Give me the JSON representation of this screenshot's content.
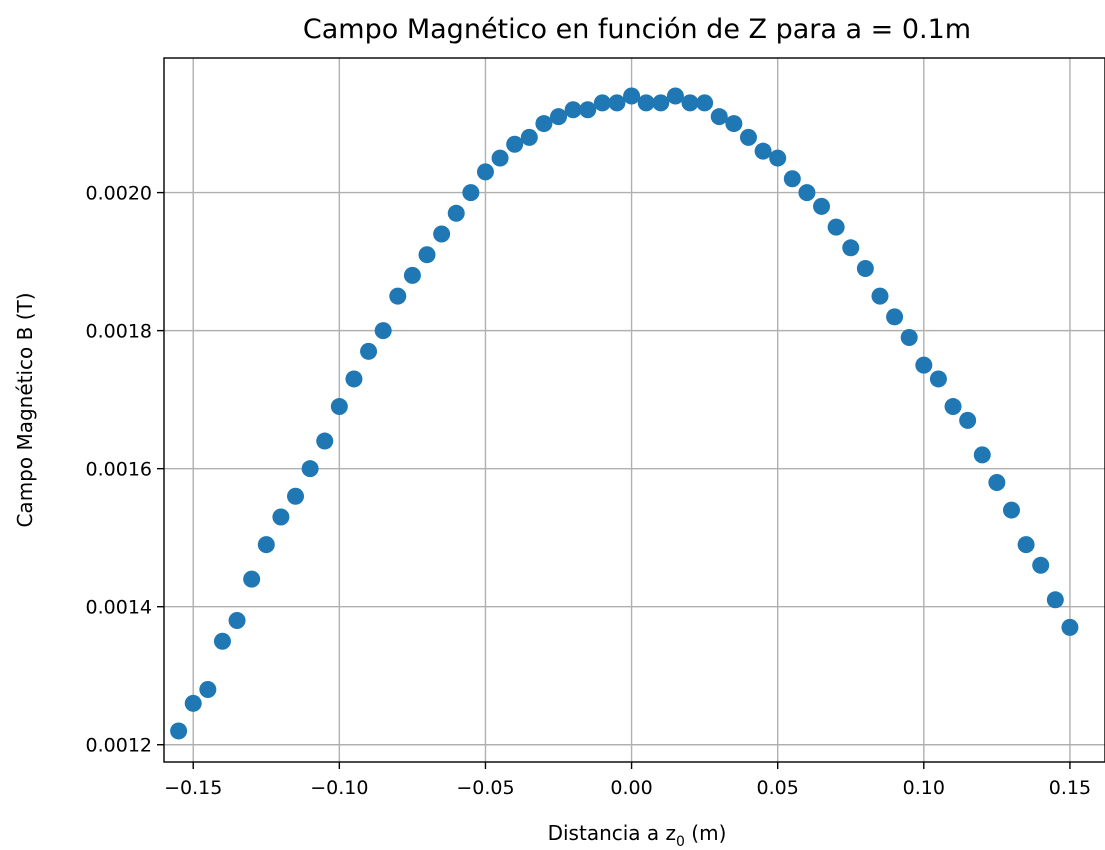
{
  "chart_data": {
    "type": "scatter",
    "title": "Campo Magnético en función de Z para a = 0.1m",
    "xlabel_main": "Distancia a z",
    "xlabel_sub": "0",
    "xlabel_unit": " (m)",
    "ylabel": "Campo Magnético B (T)",
    "xlim": [
      -0.16,
      0.162
    ],
    "ylim": [
      0.001175,
      0.002195
    ],
    "xticks": [
      -0.15,
      -0.1,
      -0.05,
      0.0,
      0.05,
      0.1,
      0.15
    ],
    "xtick_labels": [
      "−0.15",
      "−0.10",
      "−0.05",
      "0.00",
      "0.05",
      "0.10",
      "0.15"
    ],
    "yticks": [
      0.0012,
      0.0014,
      0.0016,
      0.0018,
      0.002
    ],
    "ytick_labels": [
      "0.0012",
      "0.0014",
      "0.0016",
      "0.0018",
      "0.0020"
    ],
    "grid": true,
    "marker_color": "#1f77b4",
    "x": [
      -0.155,
      -0.15,
      -0.145,
      -0.14,
      -0.135,
      -0.13,
      -0.125,
      -0.12,
      -0.115,
      -0.11,
      -0.105,
      -0.1,
      -0.095,
      -0.09,
      -0.085,
      -0.08,
      -0.075,
      -0.07,
      -0.065,
      -0.06,
      -0.055,
      -0.05,
      -0.045,
      -0.04,
      -0.035,
      -0.03,
      -0.025,
      -0.02,
      -0.015,
      -0.01,
      -0.005,
      0.0,
      0.005,
      0.01,
      0.015,
      0.02,
      0.025,
      0.03,
      0.035,
      0.04,
      0.045,
      0.05,
      0.055,
      0.06,
      0.065,
      0.07,
      0.075,
      0.08,
      0.085,
      0.09,
      0.095,
      0.1,
      0.105,
      0.11,
      0.115,
      0.12,
      0.125,
      0.13,
      0.135,
      0.14,
      0.145,
      0.15
    ],
    "y": [
      0.00122,
      0.00126,
      0.00128,
      0.00135,
      0.00138,
      0.00144,
      0.00149,
      0.00153,
      0.00156,
      0.0016,
      0.00164,
      0.00169,
      0.00173,
      0.00177,
      0.0018,
      0.00185,
      0.00188,
      0.00191,
      0.00194,
      0.00197,
      0.002,
      0.00203,
      0.00205,
      0.00207,
      0.00208,
      0.0021,
      0.00211,
      0.00212,
      0.00212,
      0.00213,
      0.00213,
      0.00214,
      0.00213,
      0.00213,
      0.00214,
      0.00213,
      0.00213,
      0.00211,
      0.0021,
      0.00208,
      0.00206,
      0.00205,
      0.00202,
      0.002,
      0.00198,
      0.00195,
      0.00192,
      0.00189,
      0.00185,
      0.00182,
      0.00179,
      0.00175,
      0.00173,
      0.00169,
      0.00167,
      0.00162,
      0.00158,
      0.00154,
      0.00149,
      0.00146,
      0.00141,
      0.00137
    ]
  }
}
